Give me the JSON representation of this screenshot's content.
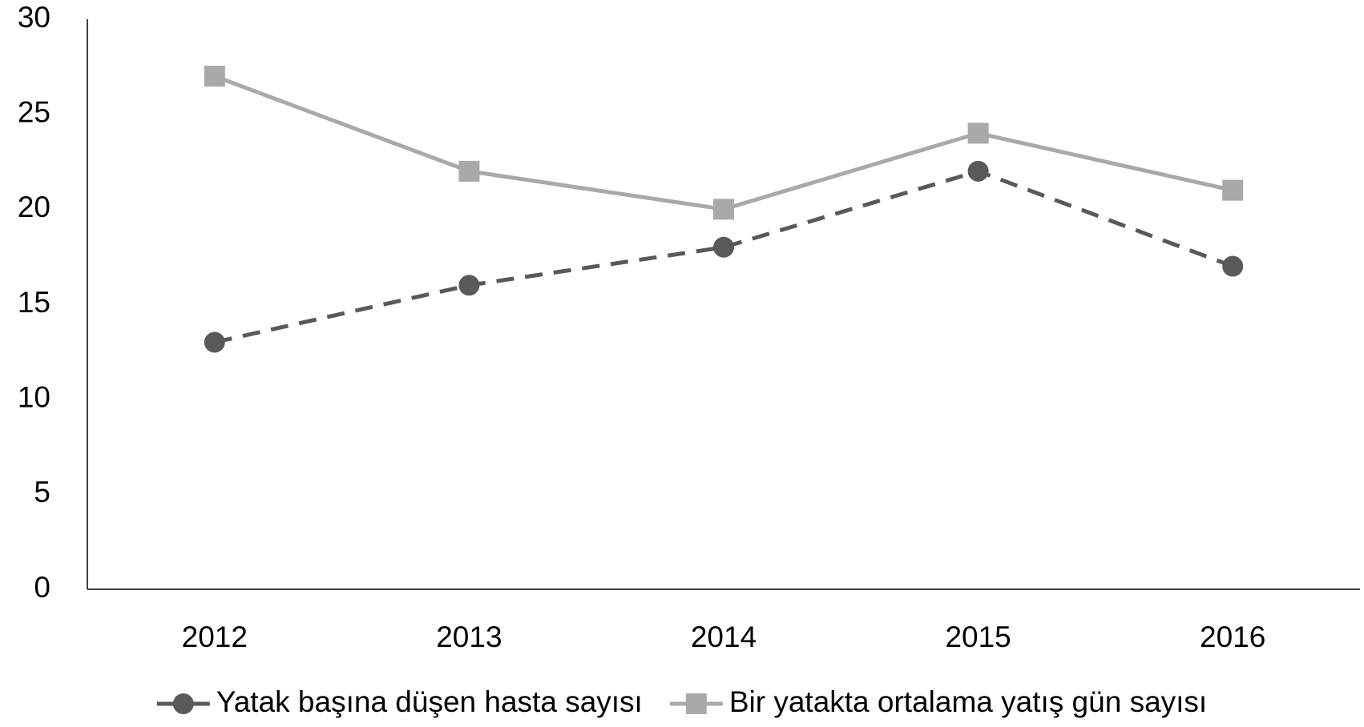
{
  "chart_data": {
    "type": "line",
    "categories": [
      "2012",
      "2013",
      "2014",
      "2015",
      "2016"
    ],
    "series": [
      {
        "name": "Yatak başına düşen hasta sayısı",
        "color": "#595959",
        "line_style": "dashed",
        "marker": "circle",
        "values": [
          13,
          16,
          18,
          22,
          17
        ]
      },
      {
        "name": "Bir yatakta ortalama yatış gün sayısı",
        "color": "#a9a9a9",
        "line_style": "solid",
        "marker": "square",
        "values": [
          27,
          22,
          20,
          24,
          21
        ]
      }
    ],
    "ylim": [
      0,
      30
    ],
    "yticks": [
      0,
      5,
      10,
      15,
      20,
      25,
      30
    ],
    "grid": false,
    "legend": "bottom"
  }
}
